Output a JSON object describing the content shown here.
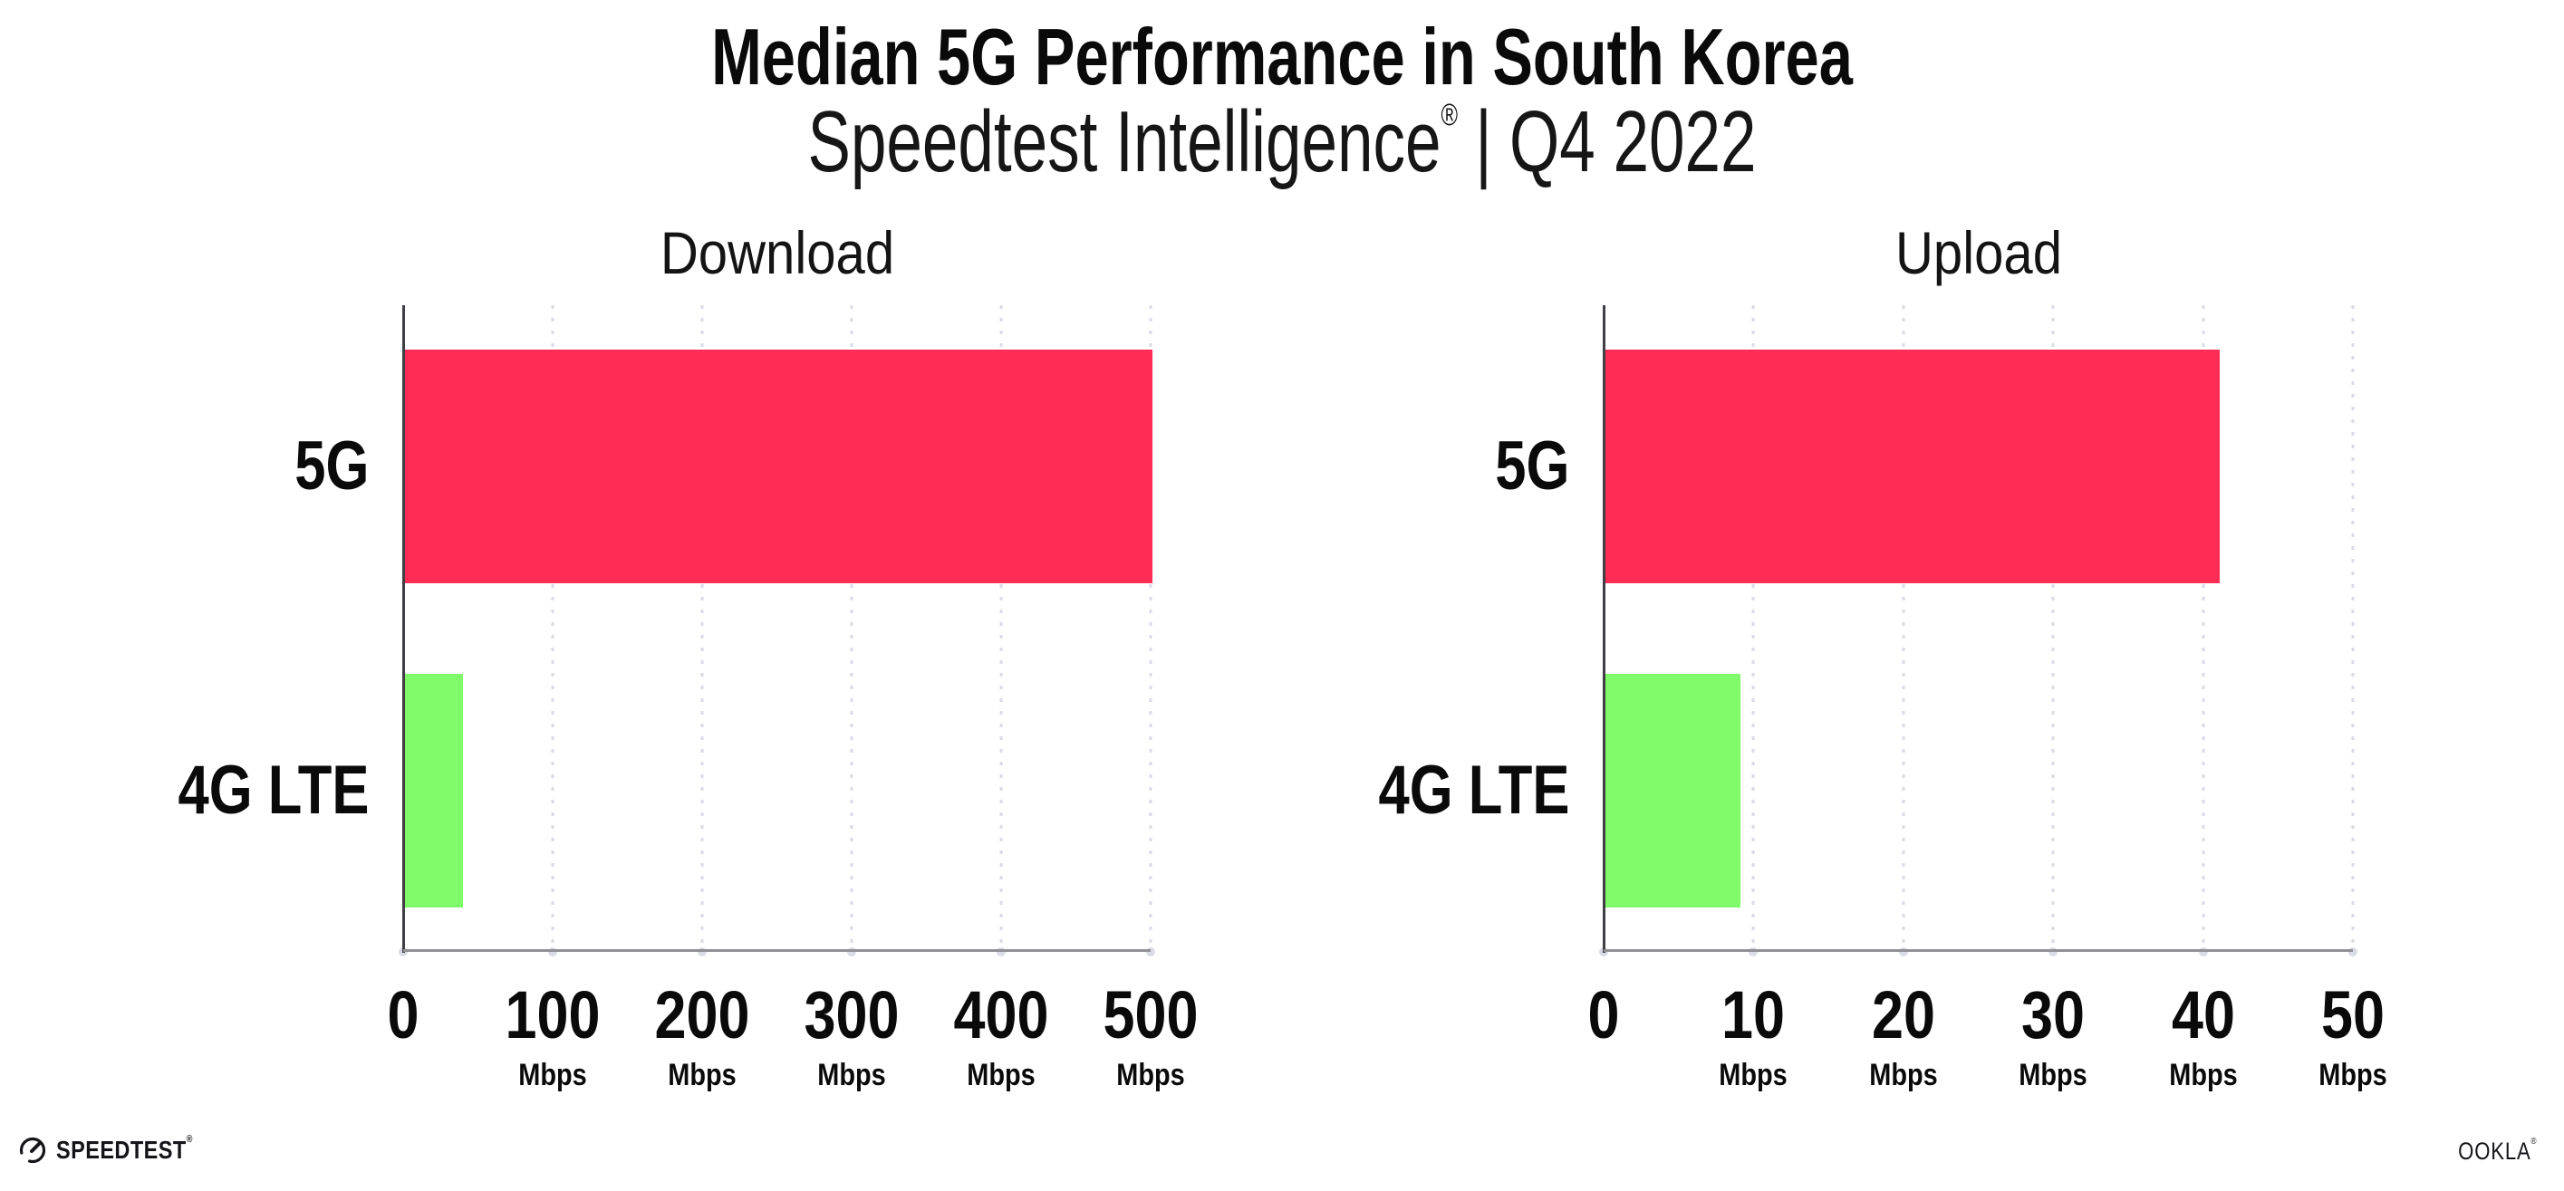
{
  "header": {
    "title": "Median 5G Performance in South Korea",
    "subtitle_brand": "Speedtest Intelligence",
    "subtitle_reg": "®",
    "subtitle_sep": "|",
    "subtitle_period": "Q4 2022"
  },
  "colors": {
    "bar_5g": "#FF2D55",
    "bar_4g_lte": "#80FB69",
    "gridline": "#D9DBE6",
    "x_axis": "#909095",
    "y_axis": "#3F3F44",
    "text": "#0A0A0A",
    "background": "#FFFFFF"
  },
  "chart_data": [
    {
      "type": "bar",
      "orientation": "horizontal",
      "title": "Download",
      "categories": [
        "5G",
        "4G LTE"
      ],
      "values": [
        500,
        39
      ],
      "unit": "Mbps",
      "xlim": [
        0,
        500
      ],
      "xticks": [
        0,
        100,
        200,
        300,
        400,
        500
      ],
      "tick_unit": "Mbps",
      "xlabel": "",
      "ylabel": "",
      "grid": "vertical-dotted",
      "legend": "none",
      "bar_colors": [
        "#FF2D55",
        "#80FB69"
      ]
    },
    {
      "type": "bar",
      "orientation": "horizontal",
      "title": "Upload",
      "categories": [
        "5G",
        "4G LTE"
      ],
      "values": [
        41,
        9
      ],
      "unit": "Mbps",
      "xlim": [
        0,
        50
      ],
      "xticks": [
        0,
        10,
        20,
        30,
        40,
        50
      ],
      "tick_unit": "Mbps",
      "xlabel": "",
      "ylabel": "",
      "grid": "vertical-dotted",
      "legend": "none",
      "bar_colors": [
        "#FF2D55",
        "#80FB69"
      ]
    }
  ],
  "footer": {
    "speedtest_logo_text": "SPEEDTEST",
    "speedtest_reg": "®",
    "ookla_logo_text": "OOKLA",
    "ookla_reg": "®"
  }
}
